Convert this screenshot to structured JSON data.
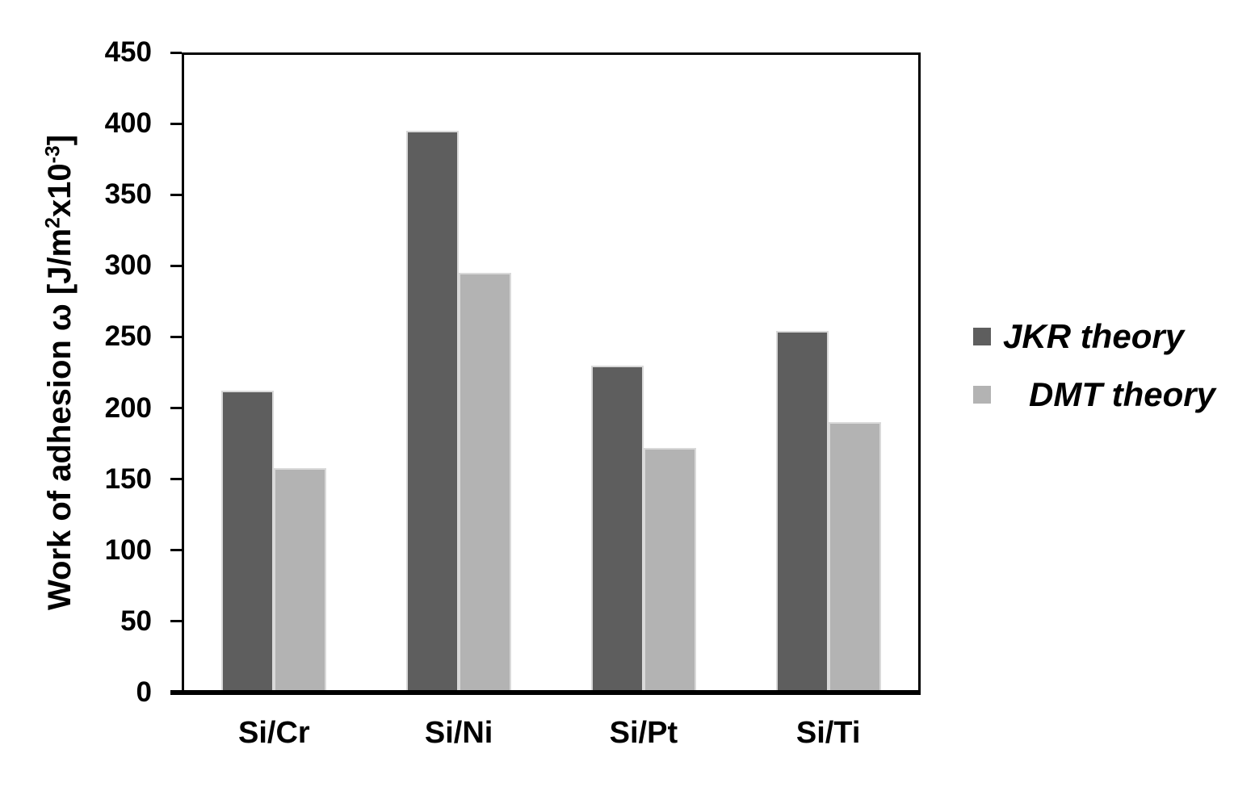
{
  "chart_data": {
    "type": "bar",
    "title": "",
    "categories": [
      "Si/Cr",
      "Si/Ni",
      "Si/Pt",
      "Si/Ti"
    ],
    "series": [
      {
        "name": "JKR theory",
        "color": "#5E5E5E",
        "values": [
          212,
          395,
          230,
          254
        ]
      },
      {
        "name": "DMT theory",
        "color": "#B3B3B3",
        "values": [
          158,
          295,
          172,
          190
        ]
      }
    ],
    "xlabel": "",
    "ylabel": "Work of adhesion ω [J/m²x10⁻³]",
    "ylabel_parts": [
      {
        "text": "Work of adhesion ω [J/m",
        "sup": false
      },
      {
        "text": "2",
        "sup": true
      },
      {
        "text": "x10",
        "sup": false
      },
      {
        "text": "-3",
        "sup": true
      },
      {
        "text": "]",
        "sup": false
      }
    ],
    "ylim": [
      0,
      450
    ],
    "ytick_step": 50,
    "yticks": [
      0,
      50,
      100,
      150,
      200,
      250,
      300,
      350,
      400,
      450
    ],
    "grid": false,
    "legend_position": "right",
    "axis_color": "#000000",
    "plot_background": "#ffffff",
    "bar_edge_color": "#d9d9d9"
  }
}
